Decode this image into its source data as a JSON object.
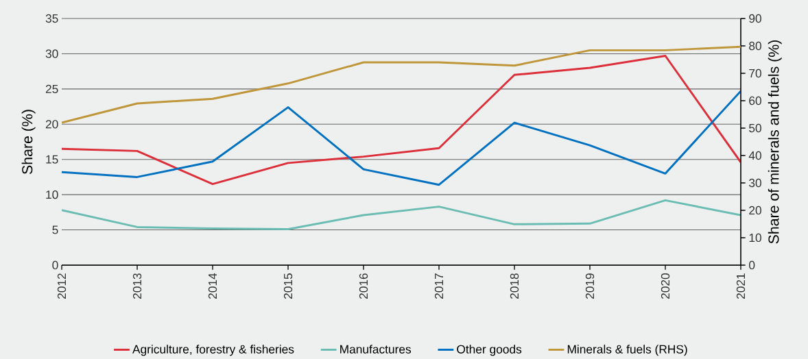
{
  "chart_data": {
    "type": "line",
    "ylabel": "Share (%)",
    "y2label": "Share of minerals and fuels (%)",
    "x": [
      2012,
      2013,
      2014,
      2015,
      2016,
      2017,
      2018,
      2019,
      2020,
      2021
    ],
    "xlim": [
      2012,
      2021
    ],
    "xticks": [
      2012,
      2013,
      2014,
      2015,
      2016,
      2017,
      2018,
      2019,
      2020,
      2021
    ],
    "ylim": [
      0,
      35
    ],
    "yticks": [
      0,
      5,
      10,
      15,
      20,
      25,
      30,
      35
    ],
    "y2lim": [
      0,
      90
    ],
    "y2ticks": [
      0,
      10,
      20,
      30,
      40,
      50,
      60,
      70,
      80,
      90
    ],
    "grid": "y",
    "legend": "bottom",
    "series": [
      {
        "name": "Agriculture, forestry & fisheries",
        "color": "#dc2f3a",
        "values": [
          16.5,
          16.2,
          11.5,
          14.5,
          15.4,
          16.6,
          27.0,
          28.0,
          29.7,
          14.6
        ]
      },
      {
        "name": "Manufactures",
        "color": "#6bbdb4",
        "values": [
          7.8,
          5.4,
          5.2,
          5.1,
          7.1,
          8.3,
          5.8,
          5.9,
          9.2,
          7.1
        ]
      },
      {
        "name": "Other goods",
        "color": "#0070c0",
        "values": [
          13.2,
          12.5,
          14.7,
          22.4,
          13.6,
          11.4,
          20.2,
          17.0,
          13.0,
          24.7
        ]
      },
      {
        "name": "Minerals & fuels (RHS)",
        "color": "#c0963a",
        "axis": "y2",
        "values": [
          52,
          59,
          60.7,
          66.3,
          74,
          74,
          72.8,
          78.4,
          78.4,
          79.7
        ]
      }
    ]
  }
}
